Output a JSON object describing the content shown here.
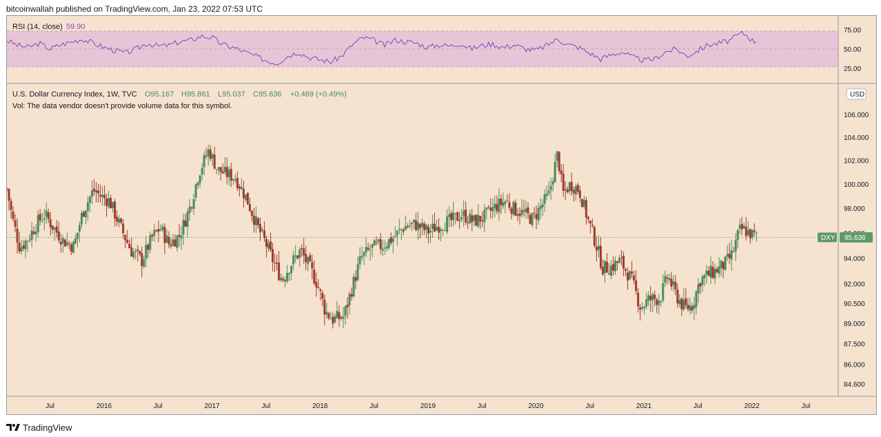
{
  "header": {
    "published_text": "bitcoinwallah published on TradingView.com, Jan 23, 2022 07:53 UTC"
  },
  "footer": {
    "brand": "TradingView"
  },
  "colors": {
    "background": "#f5e3cf",
    "rsi_band": "#e6c6d6",
    "rsi_line": "#8e3fbf",
    "up_candle": "#4a8c5c",
    "down_candle": "#9e3a2f",
    "price_line": "#5d8f5d",
    "price_label_bg": "#5c9a68"
  },
  "rsi_pane": {
    "label": "RSI (14, close)",
    "value": "59.90",
    "axis_ticks": [
      "75.00",
      "50.00",
      "25.00"
    ]
  },
  "price_pane": {
    "legend_symbol": "U.S. Dollar Currency Index, 1W, TVC",
    "legend_open": "O95.167",
    "legend_high": "H95.861",
    "legend_low": "L95.037",
    "legend_close": "C95.636",
    "legend_change": "+0.469 (+0.49%)",
    "volume_note": "Vol: The data vendor doesn't provide volume data for this symbol.",
    "currency": "USD",
    "ticker": "DXY",
    "last_price": "95.636"
  },
  "chart_data": {
    "type": "candlestick",
    "symbol": "DXY",
    "timeframe": "1W",
    "x_ticks": [
      "Jul",
      "2016",
      "Jul",
      "2017",
      "Jul",
      "2018",
      "Jul",
      "2019",
      "Jul",
      "2020",
      "Jul",
      "2021",
      "Jul",
      "2022",
      "Jul"
    ],
    "x_tick_dates": [
      2015.5,
      2016.0,
      2016.5,
      2017.0,
      2017.5,
      2018.0,
      2018.5,
      2019.0,
      2019.5,
      2020.0,
      2020.5,
      2021.0,
      2021.5,
      2022.0,
      2022.5
    ],
    "y_ticks": [
      "106.000",
      "104.000",
      "102.000",
      "100.000",
      "98.000",
      "96.000",
      "94.000",
      "92.000",
      "90.500",
      "89.000",
      "87.500",
      "86.000",
      "84.600"
    ],
    "y_tick_values": [
      106.0,
      104.0,
      102.0,
      100.0,
      98.0,
      96.0,
      94.0,
      92.0,
      90.5,
      89.0,
      87.5,
      86.0,
      84.6
    ],
    "x_range": [
      2015.1,
      2022.8
    ],
    "log_scale": true,
    "last_price": 95.636,
    "price_path": [
      [
        2015.1,
        99.6
      ],
      [
        2015.15,
        97.2
      ],
      [
        2015.22,
        94.8
      ],
      [
        2015.3,
        95.6
      ],
      [
        2015.38,
        96.8
      ],
      [
        2015.45,
        97.5
      ],
      [
        2015.55,
        96.2
      ],
      [
        2015.62,
        95.4
      ],
      [
        2015.72,
        94.9
      ],
      [
        2015.8,
        97.6
      ],
      [
        2015.9,
        99.5
      ],
      [
        2015.97,
        99.0
      ],
      [
        2016.05,
        98.6
      ],
      [
        2016.15,
        96.5
      ],
      [
        2016.25,
        94.6
      ],
      [
        2016.35,
        93.8
      ],
      [
        2016.45,
        95.7
      ],
      [
        2016.52,
        96.4
      ],
      [
        2016.6,
        95.1
      ],
      [
        2016.7,
        95.8
      ],
      [
        2016.8,
        98.2
      ],
      [
        2016.88,
        101.0
      ],
      [
        2016.97,
        102.9
      ],
      [
        2017.05,
        101.2
      ],
      [
        2017.12,
        100.9
      ],
      [
        2017.22,
        100.5
      ],
      [
        2017.32,
        98.8
      ],
      [
        2017.42,
        96.5
      ],
      [
        2017.5,
        95.1
      ],
      [
        2017.58,
        93.5
      ],
      [
        2017.65,
        92.3
      ],
      [
        2017.72,
        93.4
      ],
      [
        2017.82,
        94.6
      ],
      [
        2017.9,
        93.3
      ],
      [
        2017.97,
        92.1
      ],
      [
        2018.05,
        89.9
      ],
      [
        2018.12,
        89.3
      ],
      [
        2018.22,
        89.5
      ],
      [
        2018.3,
        91.8
      ],
      [
        2018.38,
        94.0
      ],
      [
        2018.48,
        94.8
      ],
      [
        2018.58,
        95.0
      ],
      [
        2018.68,
        95.6
      ],
      [
        2018.78,
        96.5
      ],
      [
        2018.88,
        96.7
      ],
      [
        2019.0,
        96.1
      ],
      [
        2019.1,
        96.6
      ],
      [
        2019.22,
        97.0
      ],
      [
        2019.32,
        97.5
      ],
      [
        2019.42,
        96.9
      ],
      [
        2019.52,
        97.3
      ],
      [
        2019.62,
        98.1
      ],
      [
        2019.72,
        98.6
      ],
      [
        2019.8,
        97.9
      ],
      [
        2019.88,
        97.6
      ],
      [
        2019.97,
        97.1
      ],
      [
        2020.05,
        98.2
      ],
      [
        2020.12,
        99.1
      ],
      [
        2020.2,
        102.6
      ],
      [
        2020.25,
        99.2
      ],
      [
        2020.32,
        100.0
      ],
      [
        2020.4,
        99.5
      ],
      [
        2020.48,
        97.1
      ],
      [
        2020.55,
        95.3
      ],
      [
        2020.62,
        93.2
      ],
      [
        2020.7,
        93.3
      ],
      [
        2020.78,
        93.8
      ],
      [
        2020.88,
        92.4
      ],
      [
        2020.97,
        90.2
      ],
      [
        2021.05,
        90.8
      ],
      [
        2021.15,
        90.9
      ],
      [
        2021.22,
        92.6
      ],
      [
        2021.3,
        91.1
      ],
      [
        2021.38,
        90.1
      ],
      [
        2021.45,
        90.4
      ],
      [
        2021.52,
        92.3
      ],
      [
        2021.6,
        92.7
      ],
      [
        2021.68,
        93.1
      ],
      [
        2021.75,
        93.5
      ],
      [
        2021.82,
        94.3
      ],
      [
        2021.88,
        96.1
      ],
      [
        2021.92,
        96.3
      ],
      [
        2021.97,
        96.0
      ],
      [
        2022.05,
        95.64
      ]
    ],
    "rsi_path": [
      [
        2015.1,
        62
      ],
      [
        2015.2,
        55
      ],
      [
        2015.3,
        52
      ],
      [
        2015.4,
        58
      ],
      [
        2015.5,
        50
      ],
      [
        2015.6,
        56
      ],
      [
        2015.7,
        60
      ],
      [
        2015.8,
        64
      ],
      [
        2015.9,
        58
      ],
      [
        2016.0,
        52
      ],
      [
        2016.1,
        48
      ],
      [
        2016.2,
        44
      ],
      [
        2016.3,
        50
      ],
      [
        2016.4,
        58
      ],
      [
        2016.5,
        54
      ],
      [
        2016.6,
        55
      ],
      [
        2016.7,
        60
      ],
      [
        2016.8,
        62
      ],
      [
        2016.9,
        68
      ],
      [
        2017.0,
        66
      ],
      [
        2017.1,
        56
      ],
      [
        2017.2,
        52
      ],
      [
        2017.3,
        46
      ],
      [
        2017.4,
        40
      ],
      [
        2017.5,
        34
      ],
      [
        2017.6,
        30
      ],
      [
        2017.7,
        40
      ],
      [
        2017.8,
        46
      ],
      [
        2017.9,
        38
      ],
      [
        2018.0,
        35
      ],
      [
        2018.1,
        32
      ],
      [
        2018.2,
        40
      ],
      [
        2018.3,
        56
      ],
      [
        2018.4,
        66
      ],
      [
        2018.5,
        62
      ],
      [
        2018.6,
        55
      ],
      [
        2018.7,
        63
      ],
      [
        2018.8,
        60
      ],
      [
        2018.9,
        58
      ],
      [
        2019.0,
        52
      ],
      [
        2019.1,
        56
      ],
      [
        2019.2,
        54
      ],
      [
        2019.3,
        58
      ],
      [
        2019.4,
        50
      ],
      [
        2019.5,
        55
      ],
      [
        2019.6,
        57
      ],
      [
        2019.7,
        52
      ],
      [
        2019.8,
        56
      ],
      [
        2019.9,
        50
      ],
      [
        2020.0,
        48
      ],
      [
        2020.1,
        55
      ],
      [
        2020.2,
        64
      ],
      [
        2020.3,
        56
      ],
      [
        2020.4,
        52
      ],
      [
        2020.5,
        44
      ],
      [
        2020.6,
        36
      ],
      [
        2020.7,
        42
      ],
      [
        2020.8,
        46
      ],
      [
        2020.9,
        38
      ],
      [
        2021.0,
        34
      ],
      [
        2021.1,
        36
      ],
      [
        2021.2,
        46
      ],
      [
        2021.3,
        50
      ],
      [
        2021.4,
        40
      ],
      [
        2021.5,
        48
      ],
      [
        2021.6,
        56
      ],
      [
        2021.7,
        58
      ],
      [
        2021.8,
        62
      ],
      [
        2021.9,
        72
      ],
      [
        2021.95,
        70
      ],
      [
        2022.0,
        62
      ],
      [
        2022.05,
        59.9
      ]
    ]
  }
}
